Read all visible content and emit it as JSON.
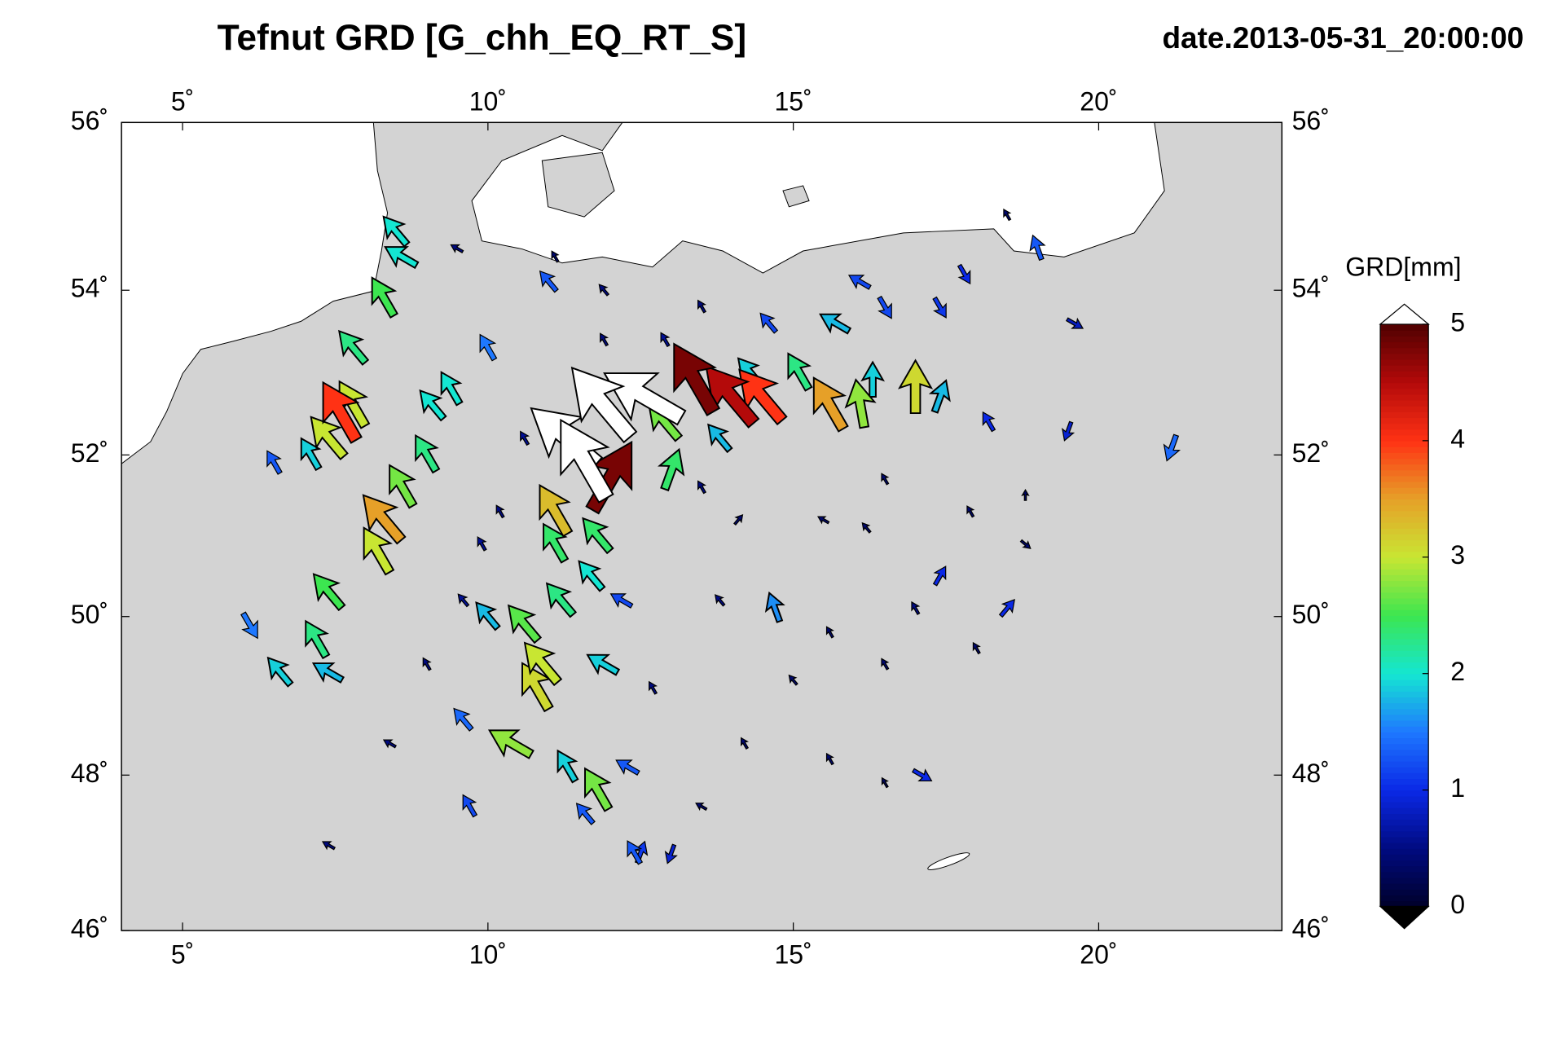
{
  "chart_data": {
    "type": "vector-map",
    "title": "Tefnut GRD [G_chh_EQ_RT_S]",
    "subtitle": "date.2013-05-31_20:00:00",
    "colorbar_label": "GRD[mm]",
    "xlim": [
      4,
      23
    ],
    "ylim": [
      46,
      56
    ],
    "xticks": [
      {
        "value": 5,
        "label": "5˚"
      },
      {
        "value": 10,
        "label": "10˚"
      },
      {
        "value": 15,
        "label": "15˚"
      },
      {
        "value": 20,
        "label": "20˚"
      }
    ],
    "yticks": [
      {
        "value": 46,
        "label": "46˚"
      },
      {
        "value": 48,
        "label": "48˚"
      },
      {
        "value": 50,
        "label": "50˚"
      },
      {
        "value": 52,
        "label": "52˚"
      },
      {
        "value": 54,
        "label": "54˚"
      },
      {
        "value": 56,
        "label": "56˚"
      }
    ],
    "clim": [
      0,
      5
    ],
    "cticks": [
      0,
      1,
      2,
      3,
      4,
      5
    ],
    "colors": [
      "#00002a",
      "#000a80",
      "#0a28e6",
      "#1e78ff",
      "#14e6d2",
      "#3ce650",
      "#c8e632",
      "#e6a028",
      "#ff3214",
      "#b40a0a",
      "#500000"
    ],
    "over_color": "#ffffff",
    "under_color": "#000000",
    "land_color": "#d3d3d3",
    "points": {
      "lon": [
        11.9,
        12.6,
        11.6,
        11.3,
        13.4,
        14.0,
        12.0,
        14.5,
        7.6,
        15.6,
        8.3,
        11.1,
        17.0,
        8.2,
        10.9,
        10.8,
        7.4,
        7.8,
        10.4,
        16.1,
        8.6,
        11.8,
        12.9,
        10.6,
        7.4,
        8.3,
        13.0,
        11.8,
        11.1,
        11.2,
        9.0,
        7.2,
        15.1,
        7.8,
        8.5,
        8.6,
        16.3,
        17.4,
        9.1,
        9.4,
        11.7,
        11.9,
        7.1,
        13.8,
        14.3,
        15.7,
        14.7,
        11.3,
        6.6,
        7.4,
        10.0,
        21.2,
        19.0,
        10.0,
        6.1,
        9.6,
        6.5,
        11.0,
        12.4,
        12.3,
        11.6,
        16.1,
        16.5,
        17.4,
        18.2,
        19.5,
        14.6,
        17.8,
        17.1,
        18.5,
        12.2,
        12.5,
        9.7,
        17.4,
        13.0,
        19.6,
        13.5,
        14.1,
        15.5,
        16.5,
        17.9,
        18.8,
        18.8,
        15.6,
        16.5,
        15.0,
        14.2,
        15.6,
        16.5,
        13.5,
        12.7,
        9.0,
        8.4,
        9.6,
        10.2,
        12.9,
        11.9,
        9.5,
        11.1,
        13.5,
        7.4,
        18.5,
        17.0,
        18.0,
        10.6,
        9.9,
        13.8,
        16.2,
        11.9
      ],
      "lat": [
        52.6,
        52.7,
        51.9,
        52.2,
        52.9,
        52.7,
        51.7,
        52.7,
        52.5,
        52.6,
        51.2,
        51.3,
        52.8,
        50.8,
        49.4,
        49.1,
        52.2,
        52.6,
        48.4,
        52.6,
        51.6,
        47.8,
        52.4,
        49.9,
        50.3,
        53.9,
        51.8,
        51.0,
        50.9,
        50.2,
        52.0,
        49.7,
        53.0,
        53.3,
        54.7,
        54.4,
        52.9,
        52.7,
        52.6,
        52.8,
        50.5,
        49.4,
        52.0,
        52.2,
        53.0,
        53.6,
        50.1,
        48.1,
        49.3,
        49.3,
        50.0,
        52.1,
        54.5,
        53.3,
        49.9,
        48.7,
        51.9,
        54.1,
        47.0,
        48.1,
        47.5,
        54.1,
        53.8,
        53.8,
        52.4,
        52.3,
        53.6,
        54.2,
        48.0,
        50.1,
        50.2,
        47.0,
        47.6,
        50.5,
        47.0,
        53.6,
        51.6,
        51.2,
        51.2,
        51.7,
        51.3,
        51.5,
        50.9,
        49.8,
        49.4,
        49.2,
        48.4,
        48.2,
        47.9,
        47.6,
        49.1,
        49.4,
        48.4,
        50.2,
        51.3,
        53.4,
        54.0,
        54.5,
        54.4,
        53.8,
        47.1,
        54.9,
        50.1,
        49.6,
        52.2,
        50.9,
        50.2,
        51.1,
        53.4
      ],
      "values": [
        5.6,
        5.5,
        5.6,
        5.3,
        4.8,
        4.5,
        4.8,
        4.0,
        4.0,
        3.5,
        3.5,
        3.3,
        3.1,
        3.0,
        3.0,
        3.1,
        3.0,
        3.0,
        2.8,
        2.8,
        2.7,
        2.7,
        2.7,
        2.6,
        2.5,
        2.5,
        2.4,
        2.4,
        2.4,
        2.3,
        2.3,
        2.3,
        2.3,
        2.3,
        2.0,
        2.0,
        1.9,
        1.8,
        2.0,
        2.0,
        2.0,
        1.9,
        1.9,
        1.8,
        1.9,
        1.8,
        1.6,
        1.9,
        1.9,
        1.8,
        1.8,
        1.4,
        1.3,
        1.5,
        1.5,
        1.4,
        1.3,
        1.3,
        1.3,
        1.3,
        1.3,
        1.2,
        1.2,
        1.1,
        1.0,
        0.9,
        1.2,
        1.0,
        1.0,
        1.0,
        1.2,
        1.1,
        1.2,
        1.0,
        0.9,
        0.8,
        0.5,
        0.4,
        0.4,
        0.4,
        0.4,
        0.3,
        0.4,
        0.4,
        0.4,
        0.4,
        0.4,
        0.4,
        0.3,
        0.4,
        0.5,
        0.5,
        0.5,
        0.6,
        0.5,
        0.6,
        0.5,
        0.5,
        0.4,
        0.5,
        0.5,
        0.4,
        0.5,
        0.4,
        0.6,
        0.6,
        0.5,
        0.4,
        0.5
      ],
      "direction_deg": [
        320,
        300,
        330,
        310,
        330,
        320,
        30,
        320,
        330,
        330,
        320,
        330,
        0,
        330,
        320,
        330,
        320,
        330,
        300,
        350,
        330,
        330,
        320,
        320,
        320,
        330,
        20,
        320,
        330,
        320,
        330,
        330,
        330,
        320,
        320,
        300,
        0,
        20,
        320,
        330,
        320,
        300,
        330,
        320,
        320,
        300,
        340,
        330,
        320,
        300,
        320,
        200,
        340,
        330,
        150,
        320,
        330,
        320,
        330,
        300,
        320,
        300,
        150,
        150,
        330,
        200,
        320,
        150,
        120,
        40,
        300,
        20,
        330,
        30,
        200,
        120,
        330,
        40,
        300,
        330,
        330,
        0,
        130,
        330,
        330,
        320,
        330,
        330,
        330,
        300,
        330,
        330,
        300,
        320,
        330,
        330,
        320,
        300,
        330,
        330,
        300,
        330,
        330,
        330,
        330,
        330,
        320,
        320,
        330
      ]
    }
  }
}
